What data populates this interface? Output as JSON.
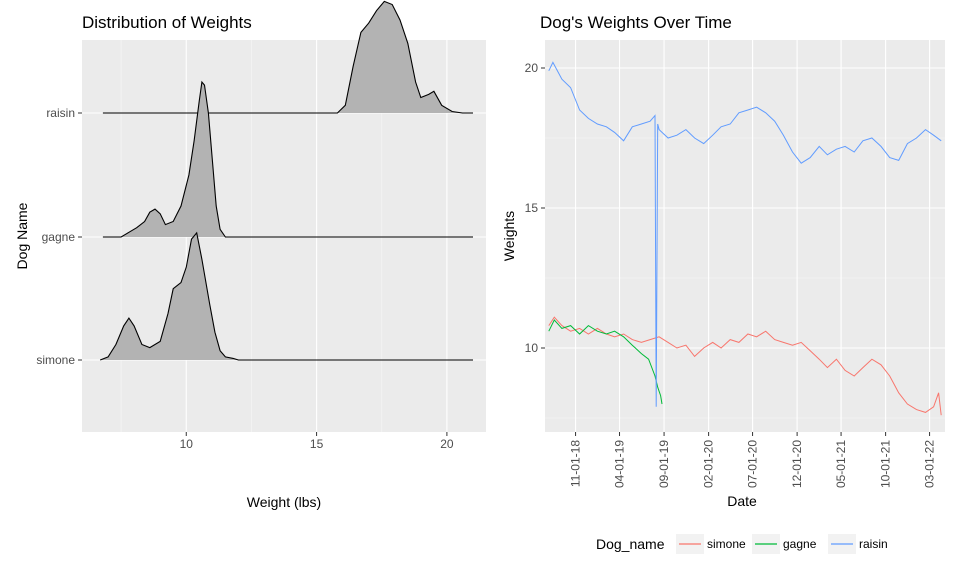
{
  "chart_data": [
    {
      "type": "area",
      "title": "Distribution of Weights",
      "xlabel": "Weight (lbs)",
      "ylabel": "Dog Name",
      "xlim": [
        6.0,
        21.5
      ],
      "x_ticks": [
        10,
        15,
        20
      ],
      "categories": [
        "simone",
        "gagne",
        "raisin"
      ],
      "grid": true,
      "series": [
        {
          "name": "simone",
          "x": [
            6.7,
            7.0,
            7.3,
            7.6,
            7.8,
            8.0,
            8.3,
            8.6,
            9.0,
            9.3,
            9.5,
            9.8,
            10.0,
            10.2,
            10.4,
            10.6,
            10.9,
            11.1,
            11.3,
            11.5,
            11.8,
            12.0,
            21.0
          ],
          "density": [
            0.0,
            0.02,
            0.1,
            0.22,
            0.27,
            0.22,
            0.1,
            0.08,
            0.12,
            0.3,
            0.46,
            0.5,
            0.6,
            0.78,
            0.82,
            0.65,
            0.36,
            0.18,
            0.06,
            0.02,
            0.01,
            0.0,
            0.0
          ]
        },
        {
          "name": "gagne",
          "x": [
            6.8,
            7.5,
            7.8,
            8.1,
            8.4,
            8.6,
            8.8,
            9.0,
            9.2,
            9.5,
            9.8,
            10.1,
            10.3,
            10.5,
            10.6,
            10.7,
            10.85,
            11.0,
            11.15,
            11.3,
            11.5,
            21.0
          ],
          "density": [
            0.0,
            0.0,
            0.03,
            0.06,
            0.1,
            0.16,
            0.18,
            0.15,
            0.08,
            0.1,
            0.2,
            0.4,
            0.62,
            0.88,
            1.0,
            0.98,
            0.8,
            0.5,
            0.2,
            0.05,
            0.0,
            0.0
          ]
        },
        {
          "name": "raisin",
          "x": [
            6.8,
            15.8,
            16.1,
            16.4,
            16.7,
            17.0,
            17.3,
            17.6,
            17.9,
            18.2,
            18.5,
            18.8,
            19.0,
            19.3,
            19.5,
            19.8,
            20.2,
            20.6,
            21.0
          ],
          "density": [
            0.0,
            0.0,
            0.05,
            0.3,
            0.52,
            0.58,
            0.66,
            0.72,
            0.7,
            0.6,
            0.45,
            0.2,
            0.1,
            0.12,
            0.14,
            0.05,
            0.01,
            0.0,
            0.0
          ]
        }
      ]
    },
    {
      "type": "line",
      "title": "Dog's Weights Over Time",
      "xlabel": "Date",
      "ylabel": "Weights",
      "ylim": [
        7.0,
        21.0
      ],
      "y_ticks": [
        10,
        15,
        20
      ],
      "xlim": [
        "2018-07-19",
        "2022-04-23"
      ],
      "x_tick_labels": [
        "11-01-18",
        "04-01-19",
        "09-01-19",
        "02-01-20",
        "07-01-20",
        "12-01-20",
        "05-01-21",
        "10-01-21",
        "03-01-22"
      ],
      "x_tick_dates": [
        "2018-11-01",
        "2019-04-01",
        "2019-09-01",
        "2020-02-01",
        "2020-07-01",
        "2020-12-01",
        "2021-05-01",
        "2021-10-01",
        "2022-03-01"
      ],
      "legend_title": "Dog_name",
      "legend_position": "bottom",
      "grid": true,
      "series": [
        {
          "name": "simone",
          "color": "#F8766D",
          "x": [
            "2018-08-01",
            "2018-08-20",
            "2018-09-15",
            "2018-10-15",
            "2018-11-15",
            "2018-12-15",
            "2019-01-15",
            "2019-02-15",
            "2019-03-15",
            "2019-04-15",
            "2019-05-15",
            "2019-06-15",
            "2019-07-15",
            "2019-08-15",
            "2019-09-15",
            "2019-10-15",
            "2019-11-15",
            "2019-12-15",
            "2020-01-15",
            "2020-02-15",
            "2020-03-15",
            "2020-04-15",
            "2020-05-15",
            "2020-06-15",
            "2020-07-15",
            "2020-08-15",
            "2020-09-15",
            "2020-10-15",
            "2020-11-15",
            "2020-12-15",
            "2021-01-15",
            "2021-02-15",
            "2021-03-15",
            "2021-04-15",
            "2021-05-15",
            "2021-06-15",
            "2021-07-15",
            "2021-08-15",
            "2021-09-15",
            "2021-10-15",
            "2021-11-15",
            "2021-12-15",
            "2022-01-15",
            "2022-02-15",
            "2022-03-15",
            "2022-04-01",
            "2022-04-10"
          ],
          "values": [
            10.8,
            11.1,
            10.8,
            10.6,
            10.7,
            10.5,
            10.7,
            10.5,
            10.4,
            10.5,
            10.3,
            10.2,
            10.3,
            10.4,
            10.2,
            10.0,
            10.1,
            9.7,
            10.0,
            10.2,
            10.0,
            10.3,
            10.2,
            10.5,
            10.4,
            10.6,
            10.3,
            10.2,
            10.1,
            10.2,
            9.9,
            9.6,
            9.3,
            9.6,
            9.2,
            9.0,
            9.3,
            9.6,
            9.4,
            9.0,
            8.4,
            8.0,
            7.8,
            7.7,
            7.9,
            8.4,
            7.6
          ]
        },
        {
          "name": "gagne",
          "color": "#00BA38",
          "x": [
            "2018-08-01",
            "2018-08-20",
            "2018-09-15",
            "2018-10-15",
            "2018-11-15",
            "2018-12-15",
            "2019-01-15",
            "2019-02-15",
            "2019-03-15",
            "2019-04-15",
            "2019-05-15",
            "2019-06-15",
            "2019-07-10",
            "2019-08-01",
            "2019-08-10",
            "2019-08-20",
            "2019-08-25"
          ],
          "values": [
            10.6,
            11.0,
            10.7,
            10.8,
            10.5,
            10.8,
            10.6,
            10.5,
            10.6,
            10.4,
            10.1,
            9.8,
            9.6,
            9.0,
            8.6,
            8.3,
            8.0
          ]
        },
        {
          "name": "raisin",
          "color": "#619CFF",
          "x": [
            "2018-08-01",
            "2018-08-15",
            "2018-09-15",
            "2018-10-15",
            "2018-11-15",
            "2018-12-15",
            "2019-01-15",
            "2019-02-15",
            "2019-03-15",
            "2019-04-15",
            "2019-05-15",
            "2019-06-15",
            "2019-07-15",
            "2019-08-01",
            "2019-08-05",
            "2019-08-10",
            "2019-08-15",
            "2019-09-15",
            "2019-10-15",
            "2019-11-15",
            "2019-12-15",
            "2020-01-15",
            "2020-02-15",
            "2020-03-15",
            "2020-04-15",
            "2020-05-15",
            "2020-06-15",
            "2020-07-15",
            "2020-08-15",
            "2020-09-15",
            "2020-10-15",
            "2020-11-15",
            "2020-12-15",
            "2021-01-15",
            "2021-02-15",
            "2021-03-15",
            "2021-04-15",
            "2021-05-15",
            "2021-06-15",
            "2021-07-15",
            "2021-08-15",
            "2021-09-15",
            "2021-10-15",
            "2021-11-15",
            "2021-12-15",
            "2022-01-15",
            "2022-02-15",
            "2022-03-15",
            "2022-04-10"
          ],
          "values": [
            19.9,
            20.2,
            19.6,
            19.3,
            18.5,
            18.2,
            18.0,
            17.9,
            17.7,
            17.4,
            17.9,
            18.0,
            18.1,
            18.3,
            7.9,
            18.0,
            17.8,
            17.5,
            17.6,
            17.8,
            17.5,
            17.3,
            17.6,
            17.9,
            18.0,
            18.4,
            18.5,
            18.6,
            18.4,
            18.1,
            17.6,
            17.0,
            16.6,
            16.8,
            17.2,
            16.9,
            17.1,
            17.2,
            17.0,
            17.4,
            17.5,
            17.2,
            16.8,
            16.7,
            17.3,
            17.5,
            17.8,
            17.6,
            17.4
          ]
        }
      ]
    }
  ]
}
